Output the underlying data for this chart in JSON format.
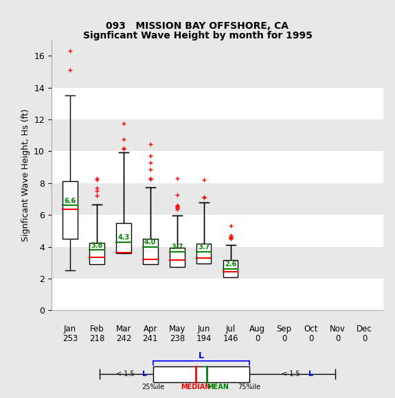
{
  "title_line1": "093   MISSION BAY OFFSHORE, CA",
  "title_line2": "Signficant Wave Height by month for 1995",
  "ylabel": "Signficant Wave Height, Hs (ft)",
  "months": [
    "Jan",
    "Feb",
    "Mar",
    "Apr",
    "May",
    "Jun",
    "Jul",
    "Aug",
    "Sep",
    "Oct",
    "Nov",
    "Dec"
  ],
  "counts": [
    253,
    218,
    242,
    241,
    238,
    194,
    146,
    0,
    0,
    0,
    0,
    0
  ],
  "ylim": [
    0,
    17
  ],
  "yticks": [
    0,
    2,
    4,
    6,
    8,
    10,
    12,
    14,
    16
  ],
  "box_data": {
    "Jan": {
      "q1": 4.5,
      "median": 6.35,
      "q3": 8.1,
      "mean": 6.6,
      "whislo": 2.5,
      "whishi": 13.5,
      "fliers_red": [
        15.1,
        16.3
      ]
    },
    "Feb": {
      "q1": 2.9,
      "median": 3.35,
      "q3": 4.25,
      "mean": 3.8,
      "whislo": 6.65,
      "whishi": 6.65,
      "fliers_red": [
        7.7,
        7.5,
        8.2,
        8.3,
        7.2
      ]
    },
    "Mar": {
      "q1": 3.6,
      "median": 3.65,
      "q3": 5.5,
      "mean": 4.3,
      "whislo": 9.95,
      "whishi": 9.95,
      "fliers_red": [
        11.75,
        10.75,
        10.2,
        10.15
      ]
    },
    "Apr": {
      "q1": 2.9,
      "median": 3.2,
      "q3": 4.5,
      "mean": 4.0,
      "whislo": 7.75,
      "whishi": 7.75,
      "fliers_red": [
        9.7,
        9.3,
        8.85,
        8.3,
        8.25,
        8.25,
        10.45
      ]
    },
    "May": {
      "q1": 2.75,
      "median": 3.15,
      "q3": 3.95,
      "mean": 3.7,
      "whislo": 5.95,
      "whishi": 5.95,
      "fliers_red": [
        6.5,
        6.55,
        6.6,
        6.5,
        6.45,
        6.35,
        8.3,
        7.25
      ]
    },
    "Jun": {
      "q1": 2.95,
      "median": 3.3,
      "q3": 4.2,
      "mean": 3.7,
      "whislo": 6.8,
      "whishi": 6.8,
      "fliers_red": [
        7.1,
        7.15,
        8.2
      ]
    },
    "Jul": {
      "q1": 2.1,
      "median": 2.45,
      "q3": 3.15,
      "mean": 2.6,
      "whislo": 4.1,
      "whishi": 4.1,
      "fliers_red": [
        5.3,
        4.7,
        4.65,
        4.6,
        4.55,
        4.5
      ]
    }
  },
  "box_color": "white",
  "median_color": "#ff0000",
  "mean_color": "#008800",
  "flier_color": "#ff0000",
  "whisker_color": "black",
  "box_edge_color": "black",
  "bg_color": "#e8e8e8",
  "stripe_color": "#ffffff"
}
